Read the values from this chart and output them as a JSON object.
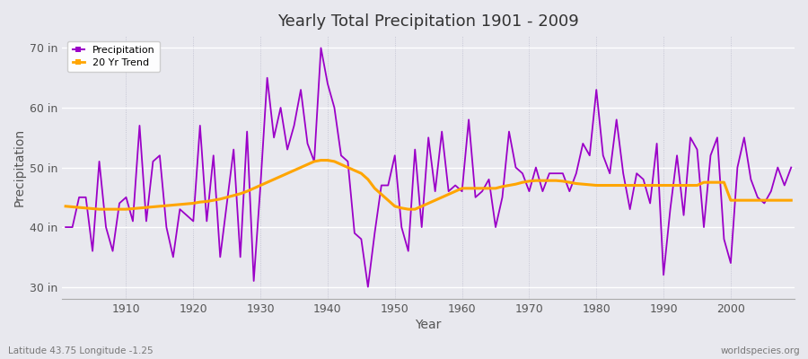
{
  "title": "Yearly Total Precipitation 1901 - 2009",
  "xlabel": "Year",
  "ylabel": "Precipitation",
  "subtitle": "Latitude 43.75 Longitude -1.25",
  "watermark": "worldspecies.org",
  "ylim": [
    28,
    72
  ],
  "yticks": [
    30,
    40,
    50,
    60,
    70
  ],
  "ytick_labels": [
    "30 in",
    "40 in",
    "50 in",
    "60 in",
    "70 in"
  ],
  "xlim": [
    1900.5,
    2009.5
  ],
  "xticks": [
    1910,
    1920,
    1930,
    1940,
    1950,
    1960,
    1970,
    1980,
    1990,
    2000
  ],
  "bg_color": "#e8e8ee",
  "plot_bg_color": "#e8e8ee",
  "precip_color": "#9B00C8",
  "trend_color": "#FFA500",
  "years": [
    1901,
    1902,
    1903,
    1904,
    1905,
    1906,
    1907,
    1908,
    1909,
    1910,
    1911,
    1912,
    1913,
    1914,
    1915,
    1916,
    1917,
    1918,
    1919,
    1920,
    1921,
    1922,
    1923,
    1924,
    1925,
    1926,
    1927,
    1928,
    1929,
    1930,
    1931,
    1932,
    1933,
    1934,
    1935,
    1936,
    1937,
    1938,
    1939,
    1940,
    1941,
    1942,
    1943,
    1944,
    1945,
    1946,
    1947,
    1948,
    1949,
    1950,
    1951,
    1952,
    1953,
    1954,
    1955,
    1956,
    1957,
    1958,
    1959,
    1960,
    1961,
    1962,
    1963,
    1964,
    1965,
    1966,
    1967,
    1968,
    1969,
    1970,
    1971,
    1972,
    1973,
    1974,
    1975,
    1976,
    1977,
    1978,
    1979,
    1980,
    1981,
    1982,
    1983,
    1984,
    1985,
    1986,
    1987,
    1988,
    1989,
    1990,
    1991,
    1992,
    1993,
    1994,
    1995,
    1996,
    1997,
    1998,
    1999,
    2000,
    2001,
    2002,
    2003,
    2004,
    2005,
    2006,
    2007,
    2008,
    2009
  ],
  "precip": [
    40,
    40,
    45,
    45,
    36,
    51,
    40,
    36,
    44,
    45,
    41,
    57,
    41,
    51,
    52,
    40,
    35,
    43,
    42,
    41,
    57,
    41,
    52,
    35,
    44,
    53,
    35,
    56,
    31,
    47,
    65,
    55,
    60,
    53,
    57,
    63,
    54,
    51,
    70,
    64,
    60,
    52,
    51,
    39,
    38,
    30,
    39,
    47,
    47,
    52,
    40,
    36,
    53,
    40,
    55,
    46,
    56,
    46,
    47,
    46,
    58,
    45,
    46,
    48,
    40,
    45,
    56,
    50,
    49,
    46,
    50,
    46,
    49,
    49,
    49,
    46,
    49,
    54,
    52,
    63,
    52,
    49,
    58,
    49,
    43,
    49,
    48,
    44,
    54,
    32,
    43,
    52,
    42,
    55,
    53,
    40,
    52,
    55,
    38,
    34,
    50,
    55,
    48,
    45,
    44,
    46,
    50,
    47,
    50
  ],
  "trend": [
    43.5,
    43.4,
    43.3,
    43.2,
    43.1,
    43.0,
    43.0,
    43.0,
    43.0,
    43.0,
    43.1,
    43.2,
    43.3,
    43.4,
    43.5,
    43.6,
    43.7,
    43.8,
    43.9,
    44.0,
    44.2,
    44.3,
    44.5,
    44.7,
    45.0,
    45.3,
    45.6,
    46.0,
    46.5,
    47.0,
    47.5,
    48.0,
    48.5,
    49.0,
    49.5,
    50.0,
    50.5,
    51.0,
    51.2,
    51.2,
    51.0,
    50.5,
    50.0,
    49.5,
    49.0,
    48.0,
    46.5,
    45.5,
    44.5,
    43.5,
    43.2,
    43.0,
    43.0,
    43.5,
    44.0,
    44.5,
    45.0,
    45.5,
    46.0,
    46.5,
    46.5,
    46.5,
    46.5,
    46.5,
    46.5,
    46.8,
    47.0,
    47.2,
    47.5,
    47.7,
    47.8,
    47.8,
    47.8,
    47.8,
    47.7,
    47.5,
    47.3,
    47.2,
    47.1,
    47.0,
    47.0,
    47.0,
    47.0,
    47.0,
    47.0,
    47.0,
    47.0,
    47.0,
    47.0,
    47.0,
    47.0,
    47.0,
    47.0,
    47.0,
    47.0,
    47.5,
    47.5,
    47.5,
    47.5,
    44.5,
    44.5,
    44.5,
    44.5,
    44.5,
    44.5,
    44.5,
    44.5,
    44.5,
    44.5
  ]
}
